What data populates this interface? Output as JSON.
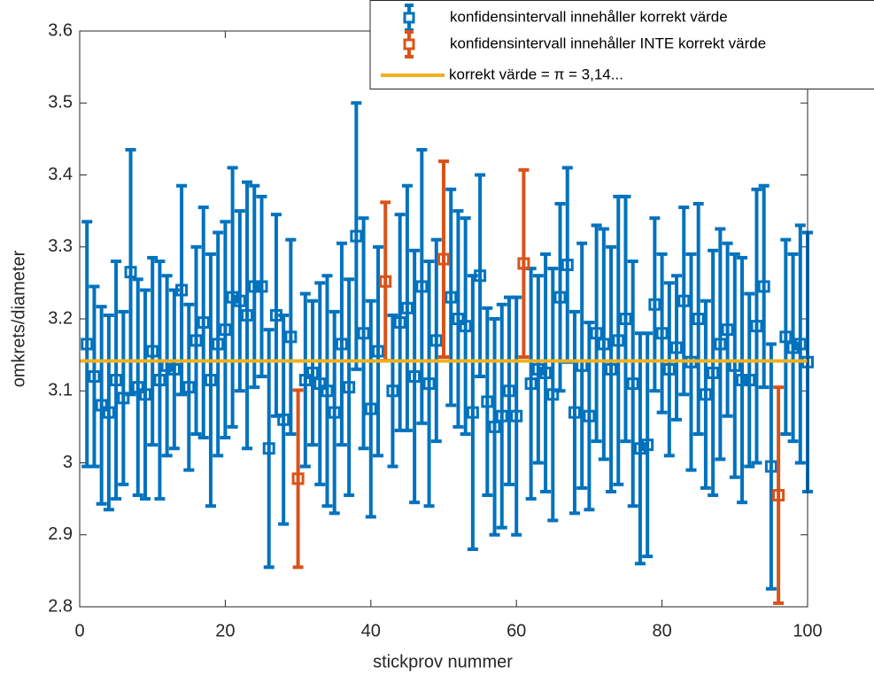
{
  "chart_data": {
    "type": "errorbar",
    "xlabel": "stickprov nummer",
    "ylabel": "omkrets/diameter",
    "xlim": [
      0,
      100
    ],
    "xticks": [
      0,
      20,
      40,
      60,
      80,
      100
    ],
    "ylim": [
      2.8,
      3.6
    ],
    "yticks": [
      2.8,
      2.9,
      3,
      3.1,
      3.2,
      3.3,
      3.4,
      3.5,
      3.6
    ],
    "legend_position": "top-right",
    "series": [
      {
        "name": "konfidensintervall innehåller korrekt värde",
        "color": "#0072BD",
        "kind": "errorbar",
        "x": [
          1,
          2,
          3,
          4,
          5,
          6,
          7,
          8,
          9,
          10,
          11,
          12,
          13,
          14,
          15,
          16,
          17,
          18,
          19,
          20,
          21,
          22,
          23,
          24,
          25,
          26,
          27,
          28,
          29,
          31,
          32,
          33,
          34,
          35,
          36,
          37,
          38,
          39,
          40,
          41,
          43,
          44,
          45,
          46,
          47,
          48,
          49,
          51,
          52,
          53,
          54,
          55,
          56,
          57,
          58,
          59,
          60,
          62,
          63,
          64,
          65,
          66,
          67,
          68,
          69,
          70,
          71,
          72,
          73,
          74,
          75,
          76,
          77,
          78,
          79,
          80,
          81,
          82,
          83,
          84,
          85,
          86,
          87,
          88,
          89,
          90,
          91,
          92,
          93,
          94,
          95,
          97,
          98,
          99,
          100
        ],
        "values": [
          3.165,
          3.12,
          3.08,
          3.07,
          3.115,
          3.09,
          3.265,
          3.105,
          3.095,
          3.155,
          3.115,
          3.135,
          3.13,
          3.24,
          3.105,
          3.17,
          3.195,
          3.115,
          3.165,
          3.185,
          3.23,
          3.225,
          3.205,
          3.245,
          3.245,
          3.02,
          3.205,
          3.06,
          3.175,
          3.115,
          3.125,
          3.11,
          3.1,
          3.07,
          3.165,
          3.105,
          3.315,
          3.18,
          3.075,
          3.155,
          3.1,
          3.195,
          3.215,
          3.12,
          3.245,
          3.11,
          3.17,
          3.23,
          3.2,
          3.19,
          3.07,
          3.26,
          3.085,
          3.05,
          3.065,
          3.1,
          3.065,
          3.11,
          3.13,
          3.125,
          3.095,
          3.23,
          3.275,
          3.07,
          3.135,
          3.065,
          3.18,
          3.165,
          3.13,
          3.17,
          3.2,
          3.11,
          3.02,
          3.025,
          3.22,
          3.18,
          3.13,
          3.16,
          3.225,
          3.14,
          3.2,
          3.095,
          3.125,
          3.165,
          3.185,
          3.135,
          3.115,
          3.115,
          3.19,
          3.245,
          2.995,
          3.175,
          3.16,
          3.165,
          3.14
        ],
        "errors": [
          0.17,
          0.125,
          0.137,
          0.135,
          0.165,
          0.12,
          0.17,
          0.15,
          0.145,
          0.13,
          0.165,
          0.125,
          0.11,
          0.145,
          0.115,
          0.13,
          0.16,
          0.175,
          0.155,
          0.15,
          0.18,
          0.125,
          0.185,
          0.14,
          0.125,
          0.165,
          0.14,
          0.145,
          0.135,
          0.12,
          0.1,
          0.14,
          0.16,
          0.14,
          0.14,
          0.15,
          0.185,
          0.16,
          0.15,
          0.145,
          0.105,
          0.15,
          0.17,
          0.175,
          0.19,
          0.17,
          0.14,
          0.15,
          0.15,
          0.15,
          0.19,
          0.14,
          0.13,
          0.15,
          0.155,
          0.13,
          0.165,
          0.16,
          0.13,
          0.165,
          0.175,
          0.13,
          0.135,
          0.14,
          0.17,
          0.13,
          0.15,
          0.16,
          0.17,
          0.2,
          0.17,
          0.17,
          0.16,
          0.155,
          0.12,
          0.11,
          0.12,
          0.1,
          0.13,
          0.15,
          0.16,
          0.13,
          0.17,
          0.16,
          0.12,
          0.155,
          0.17,
          0.12,
          0.19,
          0.14,
          0.17,
          0.135,
          0.13,
          0.165,
          0.18
        ]
      },
      {
        "name": "konfidensintervall innehåller INTE korrekt värde",
        "color": "#D95319",
        "kind": "errorbar",
        "x": [
          30,
          42,
          50,
          61,
          96
        ],
        "values": [
          2.978,
          3.252,
          3.283,
          3.277,
          2.955
        ],
        "errors": [
          0.123,
          0.11,
          0.136,
          0.13,
          0.15
        ]
      },
      {
        "name": "korrekt värde = π = 3,14...",
        "color": "#EDB120",
        "kind": "line",
        "x": [
          0,
          100
        ],
        "values": [
          3.14159,
          3.14159
        ]
      }
    ]
  }
}
